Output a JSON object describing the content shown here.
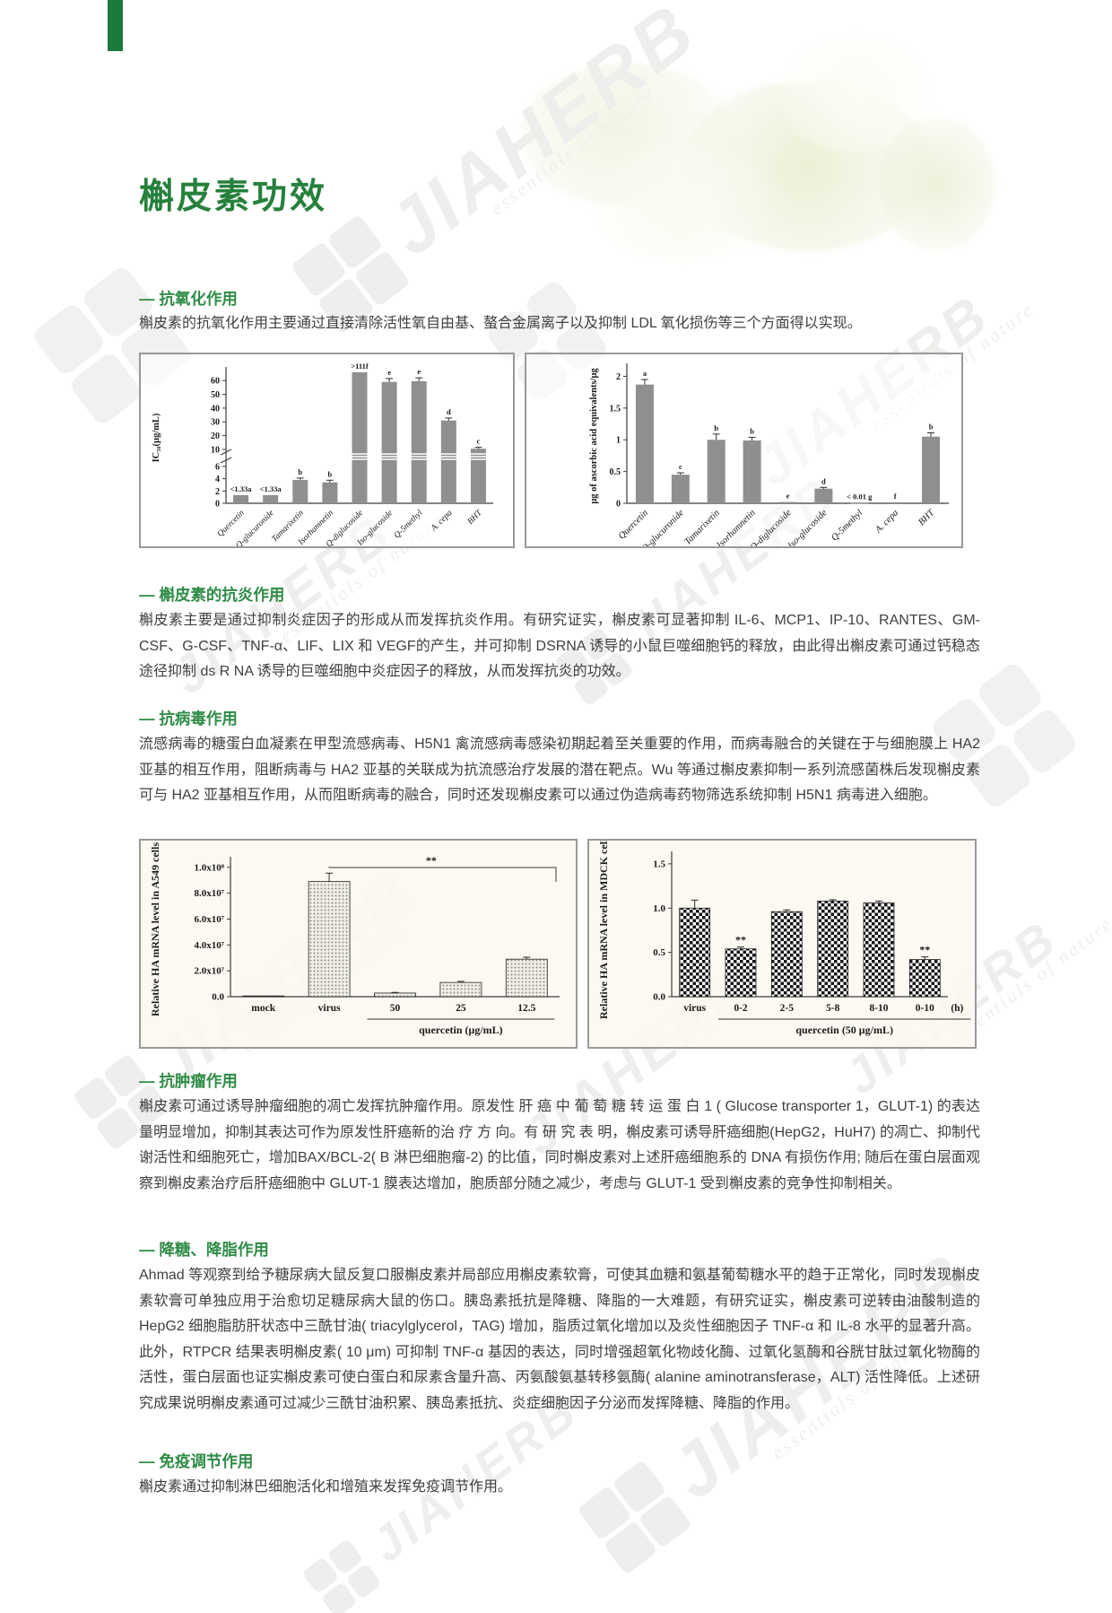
{
  "title": "槲皮素功效",
  "watermark": {
    "brand": "JIAHERB",
    "tagline": "essentials of nature"
  },
  "colors": {
    "title_green": "#25803b",
    "heading_green": "#2f8c46",
    "corner_green": "#1b7a3e",
    "body_text": "#3f3f3f",
    "bar_gray": "#8f8f8f"
  },
  "sections": [
    {
      "heading": "— 抗氧化作用",
      "body": "槲皮素的抗氧化作用主要通过直接清除活性氧自由基、螯合金属离子以及抑制 LDL 氧化损伤等三个方面得以实现。"
    },
    {
      "heading": "— 槲皮素的抗炎作用",
      "body": "槲皮素主要是通过抑制炎症因子的形成从而发挥抗炎作用。有研究证实，槲皮素可显著抑制 IL-6、MCP1、IP-10、RANTES、GM-CSF、G-CSF、TNF-α、LIF、LIX 和 VEGF的产生，并可抑制 DSRNA 诱导的小鼠巨噬细胞钙的释放，由此得出槲皮素可通过钙稳态途径抑制 ds R NA 诱导的巨噬细胞中炎症因子的释放，从而发挥抗炎的功效。"
    },
    {
      "heading": "— 抗病毒作用",
      "body": "流感病毒的糖蛋白血凝素在甲型流感病毒、H5N1 禽流感病毒感染初期起着至关重要的作用，而病毒融合的关键在于与细胞膜上 HA2 亚基的相互作用，阻断病毒与 HA2 亚基的关联成为抗流感治疗发展的潜在靶点。Wu 等通过槲皮素抑制一系列流感菌株后发现槲皮素可与 HA2 亚基相互作用，从而阻断病毒的融合，同时还发现槲皮素可以通过伪造病毒药物筛选系统抑制 H5N1 病毒进入细胞。"
    },
    {
      "heading": "— 抗肿瘤作用",
      "body": "槲皮素可通过诱导肿瘤细胞的凋亡发挥抗肿瘤作用。原发性 肝 癌 中 葡 萄 糖 转 运 蛋 白 1 ( Glucose transporter 1，GLUT-1) 的表达量明显增加，抑制其表达可作为原发性肝癌新的治 疗 方 向。有 研 究 表 明，槲皮素可诱导肝癌细胞(HepG2，HuH7) 的凋亡、抑制代谢活性和细胞死亡，增加BAX/BCL-2( B 淋巴细胞瘤-2) 的比值，同时槲皮素对上述肝癌细胞系的 DNA 有损伤作用; 随后在蛋白层面观察到槲皮素治疗后肝癌细胞中 GLUT-1 膜表达增加，胞质部分随之减少，考虑与 GLUT-1 受到槲皮素的竞争性抑制相关。"
    },
    {
      "heading": "— 降糖、降脂作用",
      "body": "Ahmad 等观察到给予糖尿病大鼠反复口服槲皮素并局部应用槲皮素软膏，可使其血糖和氨基葡萄糖水平的趋于正常化，同时发现槲皮素软膏可单独应用于治愈切足糖尿病大鼠的伤口。胰岛素抵抗是降糖、降脂的一大难题，有研究证实，槲皮素可逆转由油酸制造的 HepG2 细胞脂肪肝状态中三酰甘油( triacylglycerol，TAG) 增加，脂质过氧化增加以及炎性细胞因子 TNF-α 和 IL-8 水平的显著升高。此外，RTPCR 结果表明槲皮素( 10 μm) 可抑制 TNF-α 基因的表达，同时增强超氧化物歧化酶、过氧化氢酶和谷胱甘肽过氧化物酶的活性，蛋白层面也证实槲皮素可使白蛋白和尿素含量升高、丙氨酸氨基转移氨酶( alanine aminotransferase，ALT) 活性降低。上述研究成果说明槲皮素通可过减少三酰甘油积累、胰岛素抵抗、炎症细胞因子分泌而发挥降糖、降脂的作用。"
    },
    {
      "heading": "— 免疫调节作用",
      "body": "槲皮素通过抑制淋巴细胞活化和增殖来发挥免疫调节作用。"
    }
  ],
  "chart_data": [
    {
      "type": "bar",
      "ylabel": "IC₅₀(μg/mL)",
      "broken_axis": true,
      "ytick_values": [
        0,
        2,
        4,
        6,
        10,
        20,
        30,
        40,
        50,
        60
      ],
      "ytick_labels": [
        "0",
        "2",
        "4",
        "6",
        "10",
        "20",
        "30",
        "40",
        "50",
        "60"
      ],
      "categories": [
        "Quercetin",
        "Q-glucuronide",
        "Tamarixetin",
        "Isorhamnetin",
        "Q-diglucoside",
        "Iso-glucoside",
        "Q-5methyl",
        "A. cepa",
        "BHT"
      ],
      "values": [
        1.33,
        1.33,
        3.8,
        3.4,
        111,
        59,
        59.5,
        31,
        10.5
      ],
      "errors": [
        0,
        0,
        0.3,
        0.35,
        0,
        2.5,
        2.5,
        1.8,
        1
      ],
      "bar_labels": [
        "<1.33a",
        "<1.33a",
        "b",
        "b",
        ">111f",
        "e",
        "e",
        "d",
        "c"
      ],
      "bar_style": "solid",
      "note": "fifth bar exceeds the axis (>111) and is drawn capped at the top"
    },
    {
      "type": "bar",
      "ylabel": "μg of ascorbic acid equivalents/μg",
      "ylim": [
        0,
        2
      ],
      "ytick_values": [
        0,
        0.5,
        1,
        1.5,
        2
      ],
      "ytick_labels": [
        "0",
        "0.5",
        "1",
        "1.5",
        "2"
      ],
      "categories": [
        "Quercetin",
        "Q-glucuronide",
        "Tamarixetin",
        "Isorhamnetin",
        "Q-diglucoside",
        "Iso-glucoside",
        "Q-5methyl",
        "A. cepa",
        "BHT"
      ],
      "values": [
        1.87,
        0.45,
        1.0,
        0.99,
        0.02,
        0.23,
        0.005,
        0.015,
        1.05
      ],
      "errors": [
        0.08,
        0.03,
        0.09,
        0.05,
        0,
        0.02,
        0,
        0,
        0.06
      ],
      "bar_labels": [
        "a",
        "c",
        "b",
        "b",
        "e",
        "d",
        "< 0.01 g",
        "f",
        "b"
      ],
      "bar_style": "solid"
    },
    {
      "type": "bar",
      "ylabel": "Relative HA mRNA level in A549 cells",
      "units": "x10^7",
      "ytick_values": [
        0,
        2,
        4,
        6,
        8,
        10
      ],
      "ytick_labels": [
        "0.0",
        "2.0x10⁷",
        "4.0x10⁷",
        "6.0x10⁷",
        "8.0x10⁷",
        "1.0x10⁸"
      ],
      "categories": [
        "mock",
        "virus",
        "50",
        "25",
        "12.5"
      ],
      "values": [
        0.06,
        8.9,
        0.28,
        1.1,
        2.9
      ],
      "errors": [
        0,
        0.65,
        0.05,
        0.08,
        0.15
      ],
      "bar_labels": [
        "",
        "",
        "",
        "",
        ""
      ],
      "xlabel": "quercetin (μg/mL)",
      "xlabel_span": [
        "50",
        "12.5"
      ],
      "significance": {
        "text": "**",
        "from": "virus",
        "to": "12.5"
      },
      "bar_style": "dotted"
    },
    {
      "type": "bar",
      "ylabel": "Relative HA mRNA level in MDCK cells",
      "ytick_values": [
        0,
        0.5,
        1,
        1.5
      ],
      "ytick_labels": [
        "0.0",
        "0.5",
        "1.0",
        "1.5"
      ],
      "categories": [
        "virus",
        "0-2",
        "2-5",
        "5-8",
        "8-10",
        "0-10"
      ],
      "x_unit": "(h)",
      "values": [
        1.0,
        0.54,
        0.96,
        1.08,
        1.06,
        0.42
      ],
      "errors": [
        0.09,
        0.02,
        0.02,
        0.015,
        0.02,
        0.03
      ],
      "bar_labels": [
        "",
        "**",
        "",
        "",
        "",
        "**"
      ],
      "xlabel": "quercetin (50 μg/mL)",
      "xlabel_span": [
        "0-2",
        "0-10"
      ],
      "bar_style": "checker"
    }
  ]
}
